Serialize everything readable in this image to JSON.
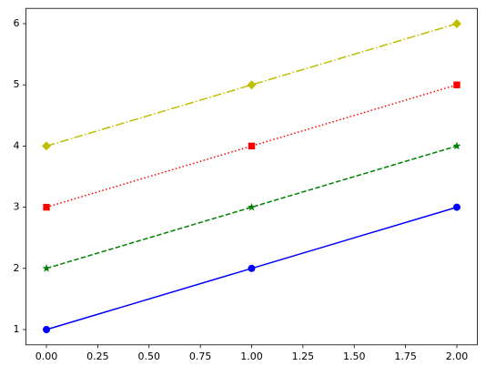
{
  "chart_data": {
    "type": "line",
    "x": [
      0,
      1,
      2
    ],
    "series": [
      {
        "color": "#0000ff",
        "linestyle": "solid",
        "marker": "circle",
        "values": [
          1,
          2,
          3
        ]
      },
      {
        "color": "#008000",
        "linestyle": "dashed",
        "marker": "star",
        "values": [
          2,
          3,
          4
        ]
      },
      {
        "color": "#ff0000",
        "linestyle": "dotted",
        "marker": "square",
        "values": [
          3,
          4,
          5
        ]
      },
      {
        "color": "#bfbf00",
        "linestyle": "dashdot",
        "marker": "diamond",
        "values": [
          4,
          5,
          6
        ]
      }
    ],
    "xlim": [
      -0.1,
      2.1
    ],
    "xticks": [
      {
        "value": 0,
        "label": "0.00"
      },
      {
        "value": 0.25,
        "label": "0.25"
      },
      {
        "value": 0.5,
        "label": "0.50"
      },
      {
        "value": 0.75,
        "label": "0.75"
      },
      {
        "value": 1,
        "label": "1.00"
      },
      {
        "value": 1.25,
        "label": "1.25"
      },
      {
        "value": 1.5,
        "label": "1.50"
      },
      {
        "value": 1.75,
        "label": "1.75"
      },
      {
        "value": 2,
        "label": "2.00"
      }
    ],
    "ylim": [
      0.75,
      6.25
    ],
    "yticks": [
      1,
      2,
      3,
      4,
      5,
      6
    ],
    "grid": false
  }
}
